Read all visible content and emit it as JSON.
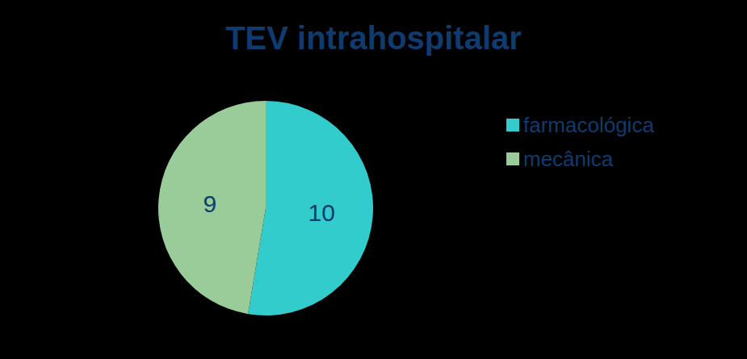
{
  "chart_data": {
    "type": "pie",
    "title": "TEV intrahospitalar",
    "categories": [
      "farmacológica",
      "mecânica"
    ],
    "values": [
      10,
      9
    ],
    "colors": [
      "#33cccc",
      "#99cc99"
    ],
    "data_labels": true,
    "legend": "right"
  }
}
